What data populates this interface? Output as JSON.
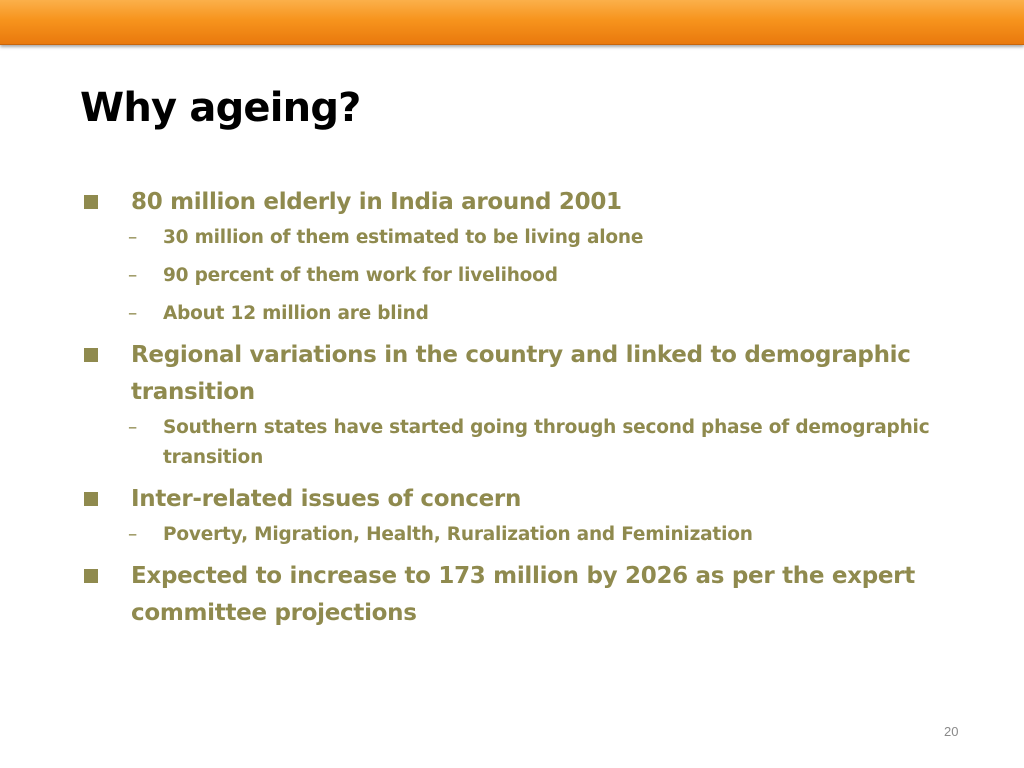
{
  "slide": {
    "title": "Why ageing?",
    "page_number": "20",
    "colors": {
      "accent_bar": "#f7941d",
      "body_text": "#8f8a4e",
      "title_text": "#000000"
    },
    "bullets": [
      {
        "text": "80 million elderly in India around 2001",
        "sub": [
          "30 million of them estimated to be living alone",
          "90 percent of them work for livelihood",
          "About 12 million are blind"
        ]
      },
      {
        "text": "Regional variations in the country and linked to demographic transition",
        "sub": [
          "Southern states have started going through second phase of demographic transition"
        ]
      },
      {
        "text": "Inter-related issues of concern",
        "sub": [
          "Poverty, Migration, Health, Ruralization and Feminization"
        ]
      },
      {
        "text": "Expected to increase to 173 million by 2026 as per the expert committee projections",
        "sub": []
      }
    ],
    "sub_bullet_marker": "–"
  }
}
